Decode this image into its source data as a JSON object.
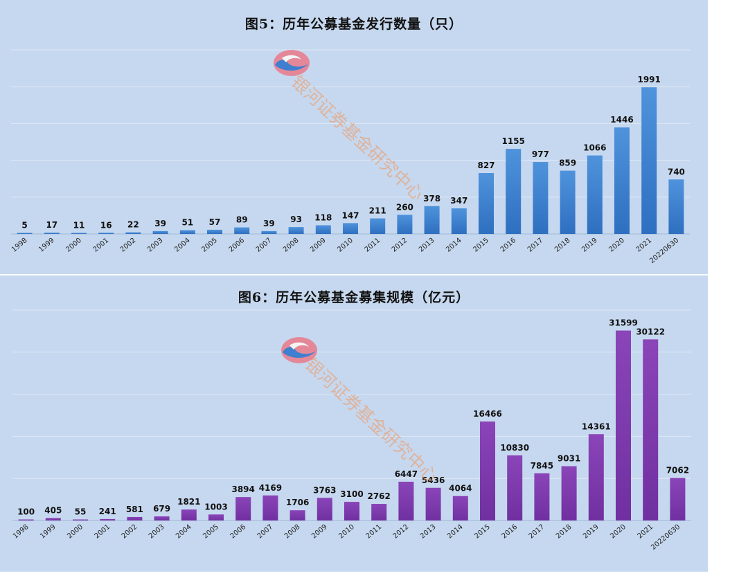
{
  "watermark": {
    "text": "银河证券基金研究中心",
    "logo": "galaxy-securities-logo"
  },
  "colors": {
    "background": "#c6d8ef",
    "grid": "#dde8f6",
    "issuance_bar": "#2e6fc0",
    "issuance_bar_light": "#4f93dc",
    "scale_bar": "#7030a0",
    "scale_bar_light": "#8a45b8"
  },
  "chart_data": [
    {
      "id": "issuance",
      "type": "bar",
      "title": "图5：历年公募基金发行数量（只）",
      "categories": [
        "1998",
        "1999",
        "2000",
        "2001",
        "2002",
        "2003",
        "2004",
        "2005",
        "2006",
        "2007",
        "2008",
        "2009",
        "2010",
        "2011",
        "2012",
        "2013",
        "2014",
        "2015",
        "2016",
        "2017",
        "2018",
        "2019",
        "2020",
        "2021",
        "20220630"
      ],
      "values": [
        5,
        17,
        11,
        16,
        22,
        39,
        51,
        57,
        89,
        39,
        93,
        118,
        147,
        211,
        260,
        378,
        347,
        827,
        1155,
        977,
        859,
        1066,
        1446,
        1991,
        740
      ],
      "ylim": [
        0,
        2500
      ],
      "grid": true,
      "data_labels": true
    },
    {
      "id": "scale",
      "type": "bar",
      "title": "图6：历年公募基金募集规模（亿元）",
      "categories": [
        "1998",
        "1999",
        "2000",
        "2001",
        "2002",
        "2003",
        "2004",
        "2005",
        "2006",
        "2007",
        "2008",
        "2009",
        "2010",
        "2011",
        "2012",
        "2013",
        "2014",
        "2015",
        "2016",
        "2017",
        "2018",
        "2019",
        "2020",
        "2021",
        "20220630"
      ],
      "values": [
        100,
        405,
        55,
        241,
        581,
        679,
        1821,
        1003,
        3894,
        4169,
        1706,
        3763,
        3100,
        2762,
        6447,
        5436,
        4064,
        16466,
        10830,
        7845,
        9031,
        14361,
        31599,
        30122,
        7062
      ],
      "ylim": [
        0,
        35000
      ],
      "grid": true,
      "data_labels": true
    }
  ]
}
